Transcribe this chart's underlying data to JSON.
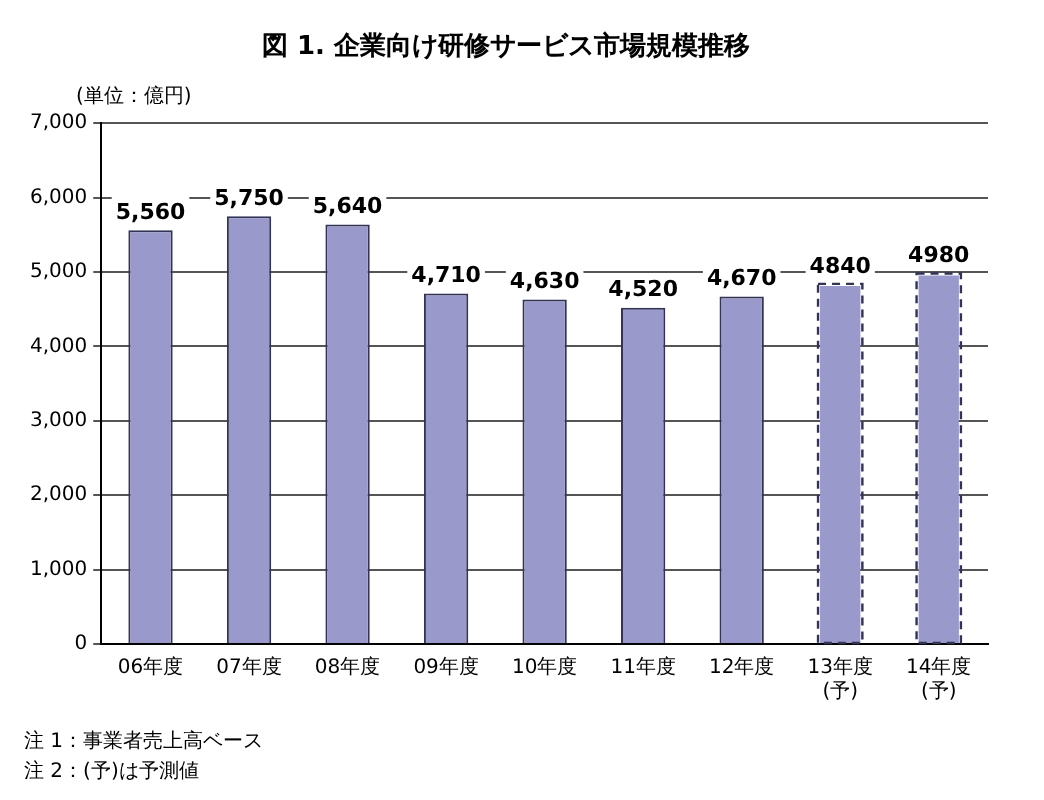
{
  "chart_data": {
    "type": "bar",
    "title": "図 1. 企業向け研修サービス市場規模推移",
    "ylabel": "(単位：億円)",
    "categories": [
      "06年度",
      "07年度",
      "08年度",
      "09年度",
      "10年度",
      "11年度",
      "12年度",
      "13年度\n(予)",
      "14年度\n(予)"
    ],
    "stacked": true,
    "series": [
      {
        "color": "#9999cc",
        "values": [
          5560,
          5750,
          5640,
          4710,
          4630,
          4520,
          4670,
          null,
          null
        ],
        "value_labels": [
          "5,560",
          "5,750",
          "5,640",
          "4,710",
          "4,630",
          "4,520",
          "4,670",
          null,
          null
        ]
      },
      {
        "color": "#9999cc",
        "line_style": "dashed",
        "values": [
          null,
          null,
          null,
          null,
          null,
          null,
          null,
          4840,
          4980
        ],
        "value_labels": [
          null,
          null,
          null,
          null,
          null,
          null,
          null,
          "4840",
          "4980"
        ]
      }
    ],
    "ylim": [
      0,
      7000
    ],
    "yticks": [
      {
        "value": 0,
        "label": "0"
      },
      {
        "value": 1000,
        "label": "1,000"
      },
      {
        "value": 2000,
        "label": "2,000"
      },
      {
        "value": 3000,
        "label": "3,000"
      },
      {
        "value": 4000,
        "label": "4,000"
      },
      {
        "value": 5000,
        "label": "5,000"
      },
      {
        "value": 6000,
        "label": "6,000"
      },
      {
        "value": 7000,
        "label": "7,000"
      }
    ],
    "grid": "y",
    "annotations": [
      "注 1：事業者売上高ベース",
      "注 2：(予)は予測値"
    ]
  }
}
